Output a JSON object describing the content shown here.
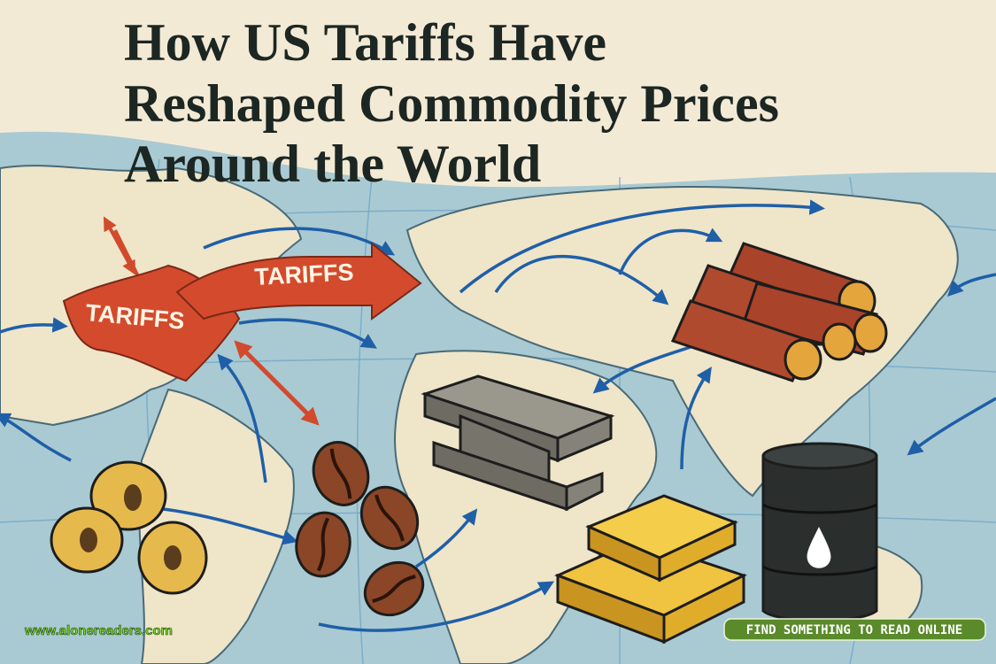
{
  "title": {
    "lines": [
      "How US Tariffs Have",
      "Reshaped Commodity Prices",
      "Around the World"
    ]
  },
  "arrow_labels": [
    "TARIFFS",
    "TARIFFS"
  ],
  "footer": {
    "website": "www.alonereaders.com",
    "banner": "FIND SOMETHING TO READ ONLINE"
  }
}
